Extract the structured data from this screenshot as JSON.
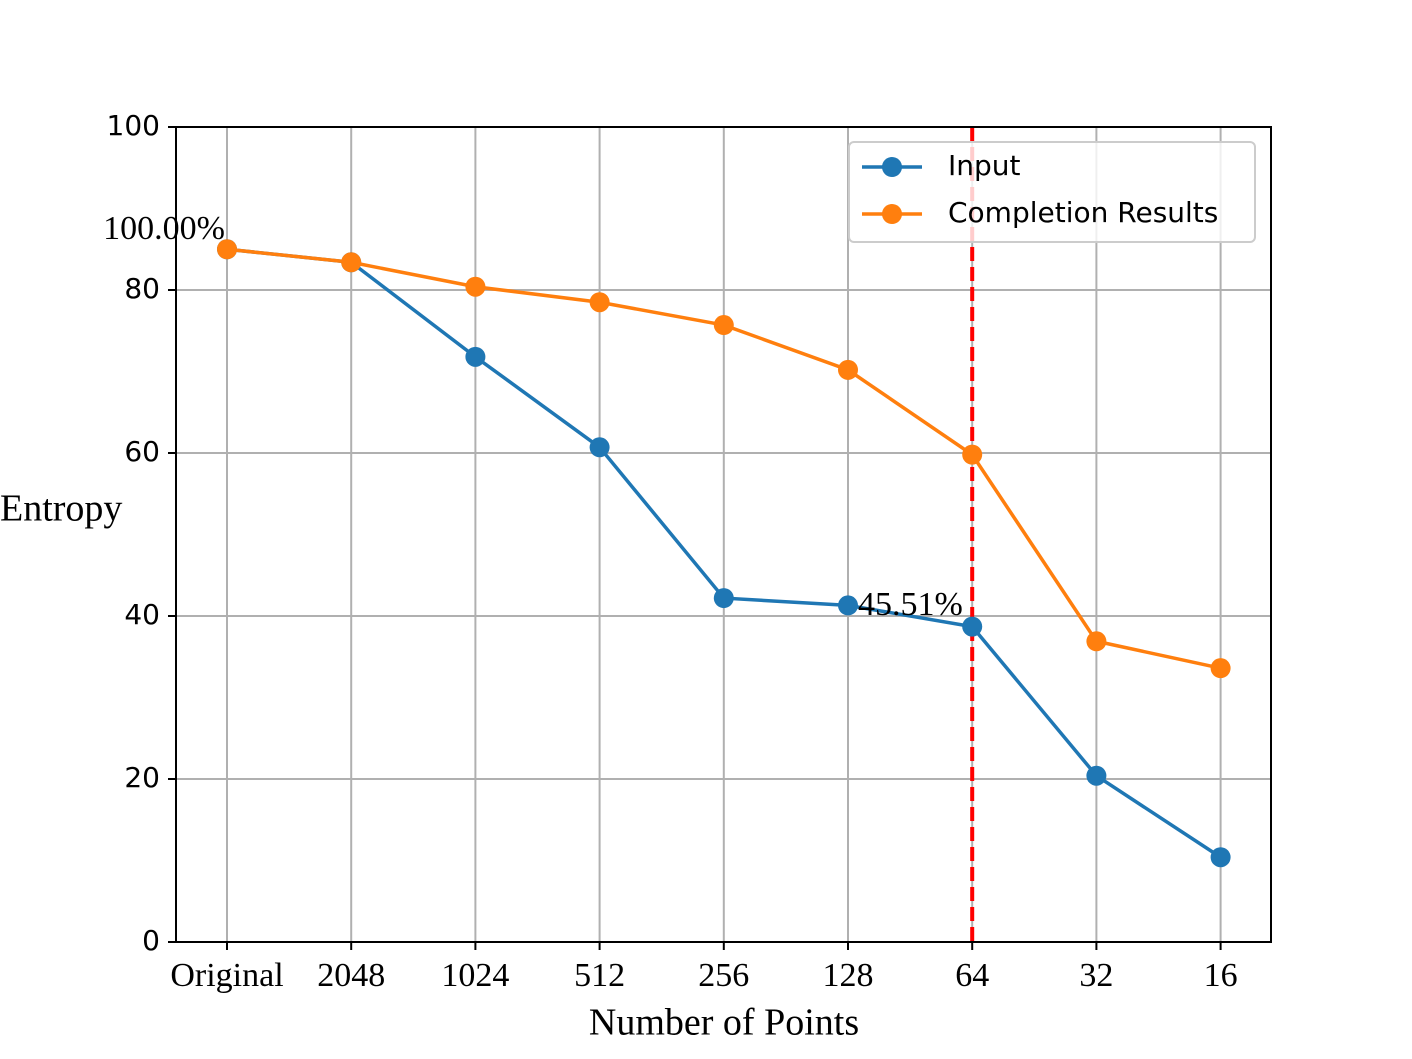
{
  "chart_data": {
    "type": "line",
    "xlabel": "Number of Points",
    "ylabel": "Entropy",
    "categories": [
      "Original",
      "2048",
      "1024",
      "512",
      "256",
      "128",
      "64",
      "32",
      "16"
    ],
    "series": [
      {
        "name": "Input",
        "color": "#1f77b4",
        "values": [
          85.0,
          83.4,
          71.8,
          60.7,
          42.2,
          41.3,
          38.7,
          20.4,
          10.4
        ]
      },
      {
        "name": "Completion Results",
        "color": "#ff7f0e",
        "values": [
          85.0,
          83.4,
          80.4,
          78.5,
          75.7,
          70.2,
          59.8,
          36.9,
          33.6
        ]
      }
    ],
    "ylim": [
      0,
      100
    ],
    "yticks": [
      0,
      20,
      40,
      60,
      80,
      100
    ],
    "grid": true,
    "legend": "upper right",
    "vline": {
      "x": "64",
      "color": "#ff0000",
      "style": "dashed"
    },
    "annotations": [
      {
        "text": "100.00%",
        "x": "Original",
        "y": 85.0
      },
      {
        "text": "45.51%",
        "x": "128",
        "y": 41.3
      }
    ]
  }
}
